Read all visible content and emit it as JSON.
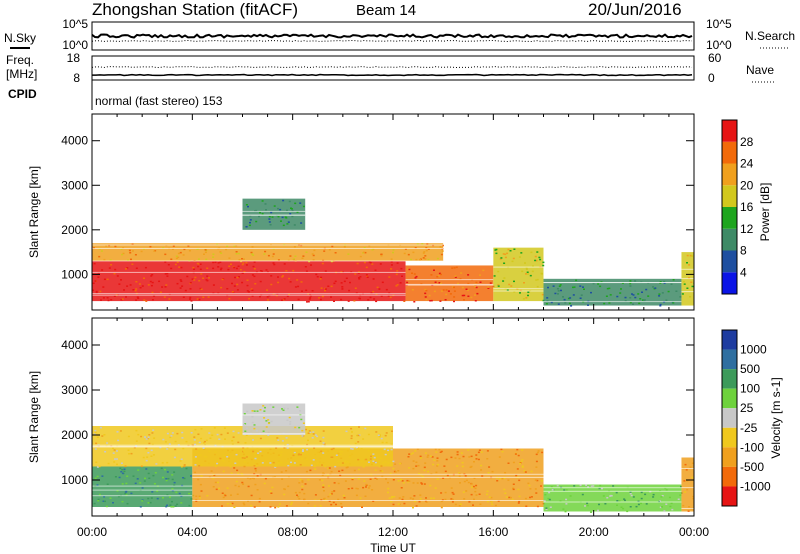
{
  "header": {
    "station": "Zhongshan Station (fitACF)",
    "beam": "Beam 14",
    "date": "20/Jun/2016"
  },
  "top_panels": {
    "nsky_label": "N.Sky",
    "nsky_ticks": [
      "10^5",
      "10^0"
    ],
    "nsearch_label": "N.Search",
    "nsearch_ticks": [
      "10^5",
      "10^0"
    ],
    "freq_label": "Freq.",
    "freq_unit": "[MHz]",
    "freq_ticks": [
      "18",
      "8"
    ],
    "nave_label": "Nave",
    "nave_ticks": [
      "60",
      "0"
    ],
    "cpid_label": "CPID",
    "cpid_value": "normal (fast stereo) 153"
  },
  "colors": {
    "power": [
      "#0a14e6",
      "#1e4fa0",
      "#3e8a66",
      "#1ea51e",
      "#d2c81e",
      "#f0a01e",
      "#f26a0a",
      "#e61414"
    ],
    "velocity": [
      "#1e3ca0",
      "#2f6fa0",
      "#3c9a5a",
      "#6ed23c",
      "#c8c8c8",
      "#f0c81e",
      "#f0a01e",
      "#f26a0a",
      "#e61414"
    ]
  },
  "chart_data": [
    {
      "type": "heatmap",
      "title": "Power",
      "ylabel": "Slant Range [km]",
      "xlabel": "Time UT",
      "x_ticks": [
        "00:00",
        "04:00",
        "08:00",
        "12:00",
        "16:00",
        "20:00",
        "00:00"
      ],
      "y_ticks": [
        "1000",
        "2000",
        "3000",
        "4000"
      ],
      "ylim": [
        200,
        4600
      ],
      "colorbar": {
        "label": "Power [dB]",
        "unit": "dB",
        "ticks": [
          "4",
          "8",
          "12",
          "16",
          "20",
          "24",
          "28"
        ],
        "range": [
          0,
          30
        ]
      },
      "regions": [
        {
          "t0": 0.0,
          "t1": 12.5,
          "r0": 400,
          "r1": 1300,
          "level": 27
        },
        {
          "t0": 12.5,
          "t1": 16.0,
          "r0": 400,
          "r1": 1200,
          "level": 24
        },
        {
          "t0": 16.0,
          "t1": 18.0,
          "r0": 400,
          "r1": 1600,
          "level": 16
        },
        {
          "t0": 0.0,
          "t1": 14.0,
          "r0": 1300,
          "r1": 1700,
          "level": 20
        },
        {
          "t0": 6.0,
          "t1": 8.5,
          "r0": 2000,
          "r1": 2700,
          "level": 8
        },
        {
          "t0": 18.0,
          "t1": 23.5,
          "r0": 300,
          "r1": 900,
          "level": 10
        },
        {
          "t0": 23.5,
          "t1": 24.0,
          "r0": 300,
          "r1": 1500,
          "level": 18
        }
      ]
    },
    {
      "type": "heatmap",
      "title": "Velocity",
      "ylabel": "Slant Range [km]",
      "xlabel": "Time UT",
      "x_ticks": [
        "00:00",
        "04:00",
        "08:00",
        "12:00",
        "16:00",
        "20:00",
        "00:00"
      ],
      "y_ticks": [
        "1000",
        "2000",
        "3000",
        "4000"
      ],
      "ylim": [
        200,
        4600
      ],
      "colorbar": {
        "label": "Velocity [m s-1]",
        "unit": "m s-1",
        "ticks": [
          "1000",
          "500",
          "100",
          "25",
          "-25",
          "-100",
          "-500",
          "-1000"
        ],
        "range": [
          -1000,
          1000
        ]
      },
      "regions": [
        {
          "t0": 0.0,
          "t1": 4.0,
          "r0": 400,
          "r1": 1300,
          "level": 400
        },
        {
          "t0": 4.0,
          "t1": 18.0,
          "r0": 400,
          "r1": 1700,
          "level": -200
        },
        {
          "t0": 0.0,
          "t1": 12.0,
          "r0": 1300,
          "r1": 2200,
          "level": -60
        },
        {
          "t0": 6.0,
          "t1": 8.5,
          "r0": 2000,
          "r1": 2700,
          "level": 20
        },
        {
          "t0": 18.0,
          "t1": 23.5,
          "r0": 300,
          "r1": 900,
          "level": 80
        },
        {
          "t0": 23.5,
          "t1": 24.0,
          "r0": 300,
          "r1": 1500,
          "level": -300
        }
      ]
    }
  ]
}
